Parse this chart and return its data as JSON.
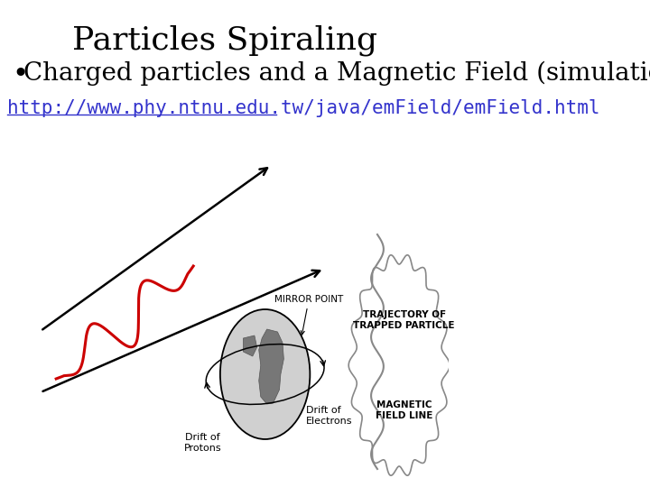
{
  "title": "Particles Spiraling",
  "bullet": "Charged particles and a Magnetic Field (simulations)",
  "url": "http://www.phy.ntnu.edu.tw/java/emField/emField.html",
  "bg_color": "#ffffff",
  "title_fontsize": 26,
  "bullet_fontsize": 20,
  "url_fontsize": 15,
  "title_color": "#000000",
  "bullet_color": "#000000",
  "url_color": "#3333cc",
  "spiral_color": "#cc0000",
  "line_color": "#000000",
  "wave_color": "#888888"
}
